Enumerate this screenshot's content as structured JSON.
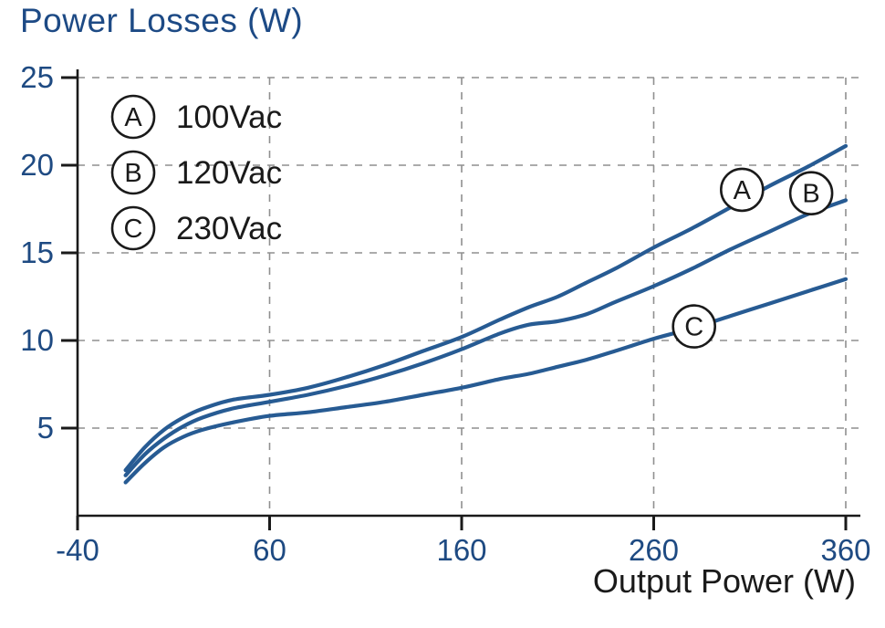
{
  "title": "Power Losses (W)",
  "xlabel": "Output Power (W)",
  "colors": {
    "curve": "#275b93",
    "title_text": "#1d4a85",
    "tick_text": "#1e4a82",
    "grid": "#8f8f8f",
    "axis": "#1a1a1a",
    "label_text": "#1a1a1a"
  },
  "chart_data": {
    "type": "line",
    "title": "Power Losses (W)",
    "xlabel": "Output Power (W)",
    "ylabel": "Power Losses (W)",
    "xlim": [
      -40,
      360
    ],
    "ylim": [
      0,
      25
    ],
    "x_ticks": [
      -40,
      60,
      160,
      260,
      360
    ],
    "y_ticks": [
      5,
      10,
      15,
      20,
      25
    ],
    "grid": "dashed",
    "x": [
      -15,
      -5,
      5,
      15,
      25,
      40,
      60,
      80,
      100,
      120,
      140,
      160,
      180,
      195,
      210,
      225,
      240,
      260,
      280,
      300,
      320,
      340,
      360
    ],
    "series": [
      {
        "name": "A",
        "label": "100Vac",
        "values": [
          2.6,
          3.9,
          4.9,
          5.6,
          6.1,
          6.6,
          6.9,
          7.3,
          7.9,
          8.6,
          9.4,
          10.2,
          11.2,
          11.9,
          12.5,
          13.3,
          14.1,
          15.3,
          16.4,
          17.6,
          18.8,
          19.9,
          21.1
        ]
      },
      {
        "name": "B",
        "label": "120Vac",
        "values": [
          2.3,
          3.5,
          4.4,
          5.1,
          5.6,
          6.1,
          6.5,
          6.9,
          7.4,
          8.0,
          8.7,
          9.5,
          10.4,
          10.9,
          11.1,
          11.5,
          12.2,
          13.1,
          14.1,
          15.2,
          16.2,
          17.2,
          18.0
        ]
      },
      {
        "name": "C",
        "label": "230Vac",
        "values": [
          1.9,
          3.0,
          3.9,
          4.5,
          4.9,
          5.3,
          5.7,
          5.9,
          6.2,
          6.5,
          6.9,
          7.3,
          7.8,
          8.1,
          8.5,
          8.9,
          9.4,
          10.1,
          10.7,
          11.4,
          12.1,
          12.8,
          13.5
        ]
      }
    ],
    "legend": {
      "position": "top-left",
      "items": [
        {
          "letter": "A",
          "text": "100Vac"
        },
        {
          "letter": "B",
          "text": "120Vac"
        },
        {
          "letter": "C",
          "text": "230Vac"
        }
      ]
    },
    "curve_labels": [
      {
        "letter": "A",
        "x": 306,
        "y": 18.6
      },
      {
        "letter": "B",
        "x": 342,
        "y": 18.4
      },
      {
        "letter": "C",
        "x": 281,
        "y": 10.8
      }
    ]
  }
}
